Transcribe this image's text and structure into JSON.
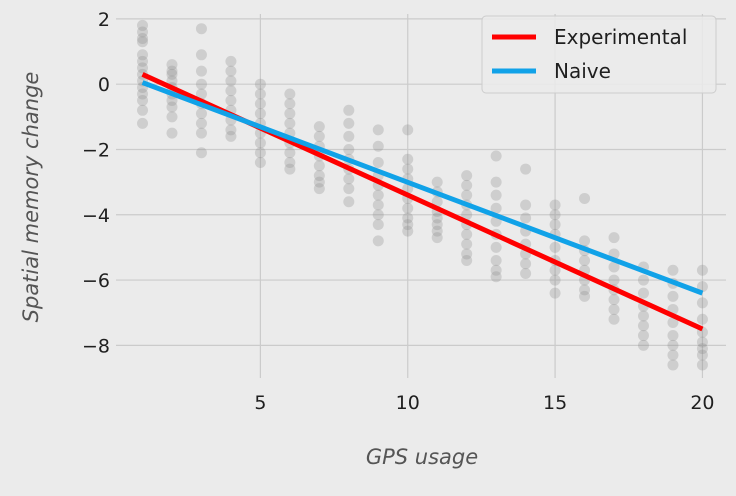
{
  "chart_data": {
    "type": "scatter",
    "title": "",
    "xlabel": "GPS usage",
    "ylabel": "Spatial memory change",
    "xlim": [
      0.1,
      20.8
    ],
    "ylim": [
      -9.0,
      2.15
    ],
    "x_ticks": [
      5,
      10,
      15,
      20
    ],
    "y_ticks": [
      2,
      0,
      -2,
      -4,
      -6,
      -8
    ],
    "x_tick_labels": [
      "5",
      "10",
      "15",
      "20"
    ],
    "y_tick_labels": [
      "2",
      "0",
      "−2",
      "−4",
      "−6",
      "−8"
    ],
    "grid": true,
    "legend_position": "top-right",
    "scatter": {
      "color": "#8c8c8c",
      "groups": [
        {
          "x": 1,
          "y": [
            1.8,
            1.6,
            1.4,
            1.3,
            0.9,
            0.7,
            0.5,
            0.3,
            0.1,
            -0.1,
            -0.3,
            -0.5,
            -0.8,
            -1.2
          ]
        },
        {
          "x": 2,
          "y": [
            0.6,
            0.4,
            0.3,
            0.1,
            -0.1,
            -0.3,
            -0.5,
            -0.7,
            -1.0,
            -1.5
          ]
        },
        {
          "x": 3,
          "y": [
            1.7,
            0.9,
            0.4,
            0.0,
            -0.3,
            -0.6,
            -0.9,
            -1.2,
            -1.5,
            -2.1
          ]
        },
        {
          "x": 4,
          "y": [
            0.7,
            0.4,
            0.1,
            -0.2,
            -0.5,
            -0.8,
            -1.1,
            -1.4,
            -1.6
          ]
        },
        {
          "x": 5,
          "y": [
            0.0,
            -0.3,
            -0.6,
            -0.9,
            -1.2,
            -1.5,
            -1.8,
            -2.1,
            -2.4
          ]
        },
        {
          "x": 6,
          "y": [
            -0.3,
            -0.6,
            -0.9,
            -1.2,
            -1.5,
            -1.8,
            -2.1,
            -2.4,
            -2.6
          ]
        },
        {
          "x": 7,
          "y": [
            -1.3,
            -1.6,
            -1.9,
            -2.2,
            -2.5,
            -2.8,
            -3.0,
            -3.2
          ]
        },
        {
          "x": 8,
          "y": [
            -0.8,
            -1.2,
            -1.6,
            -2.0,
            -2.3,
            -2.6,
            -2.9,
            -3.2,
            -3.6
          ]
        },
        {
          "x": 9,
          "y": [
            -1.4,
            -1.9,
            -2.4,
            -2.8,
            -3.1,
            -3.4,
            -3.7,
            -4.0,
            -4.3,
            -4.8
          ]
        },
        {
          "x": 10,
          "y": [
            -1.4,
            -2.3,
            -2.6,
            -2.9,
            -3.2,
            -3.5,
            -3.8,
            -4.1,
            -4.3,
            -4.5
          ]
        },
        {
          "x": 11,
          "y": [
            -3.0,
            -3.3,
            -3.6,
            -3.9,
            -4.1,
            -4.3,
            -4.5,
            -4.7
          ]
        },
        {
          "x": 12,
          "y": [
            -2.8,
            -3.1,
            -3.4,
            -3.7,
            -4.0,
            -4.3,
            -4.6,
            -4.9,
            -5.2,
            -5.4
          ]
        },
        {
          "x": 13,
          "y": [
            -2.2,
            -3.0,
            -3.4,
            -3.8,
            -4.2,
            -4.6,
            -5.0,
            -5.4,
            -5.7,
            -5.9
          ]
        },
        {
          "x": 14,
          "y": [
            -2.6,
            -3.7,
            -4.1,
            -4.5,
            -4.9,
            -5.2,
            -5.5,
            -5.8
          ]
        },
        {
          "x": 15,
          "y": [
            -3.7,
            -4.0,
            -4.3,
            -4.6,
            -5.0,
            -5.4,
            -5.7,
            -6.0,
            -6.4
          ]
        },
        {
          "x": 16,
          "y": [
            -3.5,
            -4.8,
            -5.1,
            -5.4,
            -5.7,
            -6.0,
            -6.3,
            -6.5
          ]
        },
        {
          "x": 17,
          "y": [
            -4.7,
            -5.2,
            -5.6,
            -6.0,
            -6.3,
            -6.6,
            -6.9,
            -7.2
          ]
        },
        {
          "x": 18,
          "y": [
            -5.6,
            -6.0,
            -6.4,
            -6.8,
            -7.1,
            -7.4,
            -7.7,
            -8.0
          ]
        },
        {
          "x": 19,
          "y": [
            -5.7,
            -6.1,
            -6.5,
            -6.9,
            -7.3,
            -7.7,
            -8.0,
            -8.3,
            -8.6
          ]
        },
        {
          "x": 20,
          "y": [
            -5.7,
            -6.2,
            -6.7,
            -7.2,
            -7.6,
            -7.9,
            -8.1,
            -8.3,
            -8.6
          ]
        }
      ]
    },
    "series": [
      {
        "name": "Experimental",
        "color": "#ff0000",
        "x": [
          1,
          20
        ],
        "y": [
          0.3,
          -7.5
        ]
      },
      {
        "name": "Naive",
        "color": "#11a2e8",
        "x": [
          1,
          20
        ],
        "y": [
          0.05,
          -6.4
        ]
      }
    ]
  }
}
